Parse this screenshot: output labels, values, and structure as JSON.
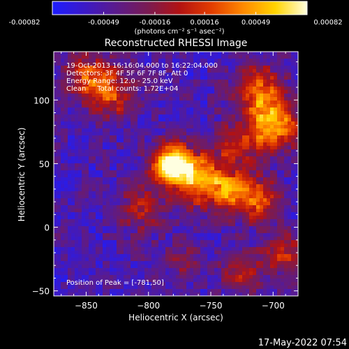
{
  "chart_data": {
    "type": "heatmap",
    "title": "Reconstructed RHESSI Image",
    "colorbar": {
      "ticks": [
        "-0.00082",
        "-0.00049",
        "-0.00016",
        "0.00016",
        "0.00049",
        "0.00082"
      ],
      "range": [
        -0.00082,
        0.00082
      ],
      "units": "(photons cm⁻² s⁻¹ asec⁻²)",
      "colors": [
        "#1d1dff",
        "#3b1ac8",
        "#5b1b8c",
        "#7a1b52",
        "#b31212",
        "#e33d00",
        "#ff8a00",
        "#ffd400",
        "#ffffe0"
      ]
    },
    "xlabel": "Heliocentric X (arcsec)",
    "ylabel": "Heliocentric Y (arcsec)",
    "xlim": [
      -876,
      -680
    ],
    "ylim": [
      -54,
      138
    ],
    "xticks": [
      -850,
      -800,
      -750,
      -700
    ],
    "yticks": [
      -50,
      0,
      50,
      100
    ],
    "xtick_labels": [
      "−850",
      "−800",
      "−750",
      "−700"
    ],
    "ytick_labels": [
      "−50",
      "0",
      "50",
      "100"
    ],
    "grid": false,
    "annotations": [
      "19-Oct-2013 16:16:04.000 to 16:22:04.000",
      "Detectors: 3F 4F 5F 6F 7F 8F, Att 0",
      "Energy Range: 12.0 - 25.0 keV",
      "Clean     Total counts: 1.72E+04"
    ],
    "peak_label": "Position of Peak = [-781,50]",
    "peak_position": [
      -781,
      50
    ],
    "sources": [
      {
        "x": -781,
        "y": 50,
        "amplitude": 1.0,
        "sigma": 11
      },
      {
        "x": -760,
        "y": 38,
        "amplitude": 0.72,
        "sigma": 14
      },
      {
        "x": -735,
        "y": 28,
        "amplitude": 0.55,
        "sigma": 12
      },
      {
        "x": -700,
        "y": 80,
        "amplitude": 0.78,
        "sigma": 14
      },
      {
        "x": -712,
        "y": 108,
        "amplitude": 0.55,
        "sigma": 14
      },
      {
        "x": -712,
        "y": 22,
        "amplitude": 0.55,
        "sigma": 12
      },
      {
        "x": -730,
        "y": 65,
        "amplitude": 0.4,
        "sigma": 12
      },
      {
        "x": -830,
        "y": 105,
        "amplitude": 0.5,
        "sigma": 14
      },
      {
        "x": -850,
        "y": 120,
        "amplitude": 0.45,
        "sigma": 12
      },
      {
        "x": -805,
        "y": 15,
        "amplitude": 0.35,
        "sigma": 14
      },
      {
        "x": -690,
        "y": -20,
        "amplitude": 0.45,
        "sigma": 12
      },
      {
        "x": -725,
        "y": -35,
        "amplitude": 0.4,
        "sigma": 12
      },
      {
        "x": -772,
        "y": -28,
        "amplitude": 0.3,
        "sigma": 10
      }
    ]
  },
  "footer_timestamp": "17-May-2022 07:54"
}
